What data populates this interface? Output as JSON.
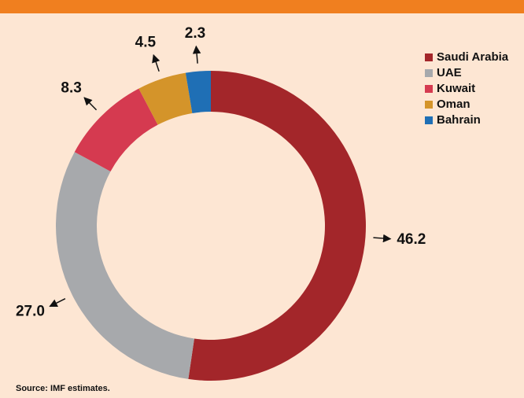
{
  "chart_data": {
    "type": "donut",
    "categories": [
      "Saudi Arabia",
      "UAE",
      "Kuwait",
      "Oman",
      "Bahrain"
    ],
    "values": [
      46.2,
      27.0,
      8.3,
      4.5,
      2.3
    ],
    "value_labels": [
      "46.2",
      "27.0",
      "8.3",
      "4.5",
      "2.3"
    ],
    "colors": [
      "#a3262a",
      "#a7a9ac",
      "#d53a50",
      "#d4942a",
      "#1f6fb5"
    ],
    "legend": "upper right",
    "source": "Source: IMF estimates."
  }
}
